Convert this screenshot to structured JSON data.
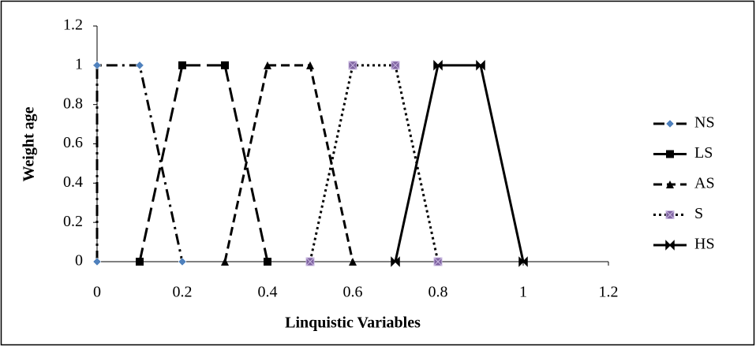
{
  "chart_data": {
    "type": "line",
    "x_label": "Linquistic Variables",
    "y_label": "Weight age",
    "xlim": [
      0,
      1.2
    ],
    "xticks": [
      0,
      0.2,
      0.4,
      0.6,
      0.8,
      1,
      1.2
    ],
    "ylim": [
      0,
      1.2
    ],
    "yticks": [
      0,
      0.2,
      0.4,
      0.6,
      0.8,
      1,
      1.2
    ],
    "grid": false,
    "legend": "right",
    "series": [
      {
        "name": "NS",
        "color": "#000000",
        "marker_color": "#4f81bd",
        "dash": "dashdot",
        "marker": "diamond",
        "x": [
          0,
          0,
          0.1,
          0.2
        ],
        "values": [
          0,
          1,
          1,
          0
        ]
      },
      {
        "name": "LS",
        "color": "#000000",
        "marker_color": "#000000",
        "dash": "longdash",
        "marker": "square",
        "x": [
          0.1,
          0.2,
          0.3,
          0.4
        ],
        "values": [
          0,
          1,
          1,
          0
        ]
      },
      {
        "name": "AS",
        "color": "#000000",
        "marker_color": "#000000",
        "dash": "dash",
        "marker": "triangle",
        "x": [
          0.3,
          0.4,
          0.5,
          0.6
        ],
        "values": [
          0,
          1,
          1,
          0
        ]
      },
      {
        "name": "S",
        "color": "#000000",
        "marker_color": "#8064a2",
        "dash": "dot",
        "marker": "xsquare",
        "x": [
          0.5,
          0.6,
          0.7,
          0.8
        ],
        "values": [
          0,
          1,
          1,
          0
        ]
      },
      {
        "name": "HS",
        "color": "#000000",
        "marker_color": "#000000",
        "dash": "solid",
        "marker": "bowtie",
        "x": [
          0.7,
          0.8,
          0.9,
          1
        ],
        "values": [
          0,
          1,
          1,
          0
        ]
      }
    ]
  }
}
